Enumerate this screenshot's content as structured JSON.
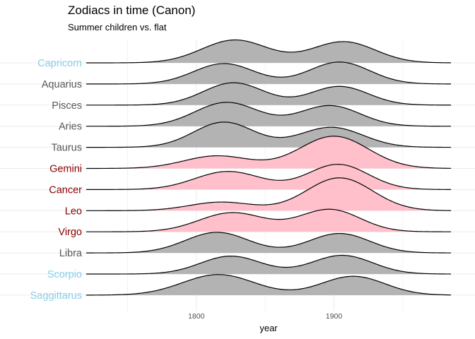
{
  "title": "Zodiacs in time (Canon)",
  "subtitle": "Summer children vs. flat",
  "chart_data": {
    "type": "area",
    "subtype": "ridgeline",
    "title": "Zodiacs in time (Canon)",
    "subtitle": "Summer children vs. flat",
    "xlabel": "year",
    "ylabel": "",
    "xlim": [
      1720,
      1985
    ],
    "x_ticks": [
      1800,
      1900
    ],
    "x_tick_labels": [
      "1800",
      "1900"
    ],
    "grid": true,
    "legend": "none",
    "colors": {
      "summer_fill": "#ffc0cb",
      "flat_fill": "#b3b3b3",
      "outline": "#000000",
      "label_winter": "#87ceeb",
      "label_spring_autumn": "#595959",
      "label_summer": "#8b0000",
      "grid": "#ebebeb"
    },
    "series": [
      {
        "name": "Capricorn",
        "group": "winter",
        "peaks": [
          {
            "year": 1828,
            "height": 1.2,
            "sd": 24
          },
          {
            "year": 1907,
            "height": 1.11,
            "sd": 23
          }
        ]
      },
      {
        "name": "Aquarius",
        "group": "flat",
        "peaks": [
          {
            "year": 1820,
            "height": 1.07,
            "sd": 22
          },
          {
            "year": 1904,
            "height": 1.15,
            "sd": 22
          }
        ]
      },
      {
        "name": "Pisces",
        "group": "flat",
        "peaks": [
          {
            "year": 1827,
            "height": 1.17,
            "sd": 22
          },
          {
            "year": 1904,
            "height": 0.98,
            "sd": 21
          }
        ]
      },
      {
        "name": "Aries",
        "group": "flat",
        "peaks": [
          {
            "year": 1822,
            "height": 1.25,
            "sd": 23
          },
          {
            "year": 1897,
            "height": 1.08,
            "sd": 22
          }
        ]
      },
      {
        "name": "Taurus",
        "group": "flat",
        "peaks": [
          {
            "year": 1820,
            "height": 1.32,
            "sd": 22
          },
          {
            "year": 1898,
            "height": 1.05,
            "sd": 23
          }
        ]
      },
      {
        "name": "Gemini",
        "group": "summer",
        "peaks": [
          {
            "year": 1815,
            "height": 0.66,
            "sd": 24
          },
          {
            "year": 1900,
            "height": 1.69,
            "sd": 25
          }
        ]
      },
      {
        "name": "Cancer",
        "group": "summer",
        "peaks": [
          {
            "year": 1823,
            "height": 0.95,
            "sd": 24
          },
          {
            "year": 1903,
            "height": 1.32,
            "sd": 22
          }
        ]
      },
      {
        "name": "Leo",
        "group": "summer",
        "peaks": [
          {
            "year": 1818,
            "height": 0.45,
            "sd": 23
          },
          {
            "year": 1904,
            "height": 1.72,
            "sd": 24
          }
        ]
      },
      {
        "name": "Virgo",
        "group": "summer",
        "peaks": [
          {
            "year": 1826,
            "height": 1.0,
            "sd": 24
          },
          {
            "year": 1897,
            "height": 1.17,
            "sd": 22
          }
        ]
      },
      {
        "name": "Libra",
        "group": "flat",
        "peaks": [
          {
            "year": 1815,
            "height": 1.08,
            "sd": 23
          },
          {
            "year": 1904,
            "height": 1.02,
            "sd": 22
          }
        ]
      },
      {
        "name": "Scorpio",
        "group": "winter",
        "peaks": [
          {
            "year": 1825,
            "height": 0.94,
            "sd": 22
          },
          {
            "year": 1906,
            "height": 0.98,
            "sd": 22
          }
        ]
      },
      {
        "name": "Saggittarus",
        "group": "winter",
        "peaks": [
          {
            "year": 1816,
            "height": 1.08,
            "sd": 26
          },
          {
            "year": 1914,
            "height": 0.99,
            "sd": 23
          }
        ]
      }
    ]
  }
}
